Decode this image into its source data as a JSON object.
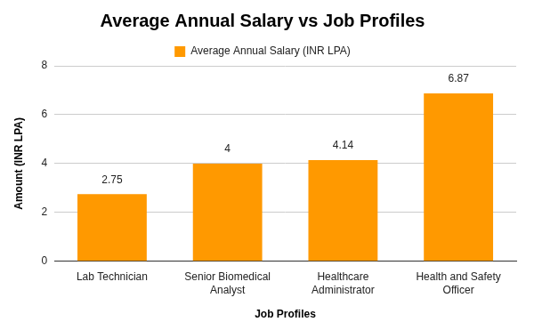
{
  "chart_data": {
    "type": "bar",
    "title": "Average Annual Salary vs Job Profiles",
    "x_label": "Job Profiles",
    "y_label": "Amount (INR LPA)",
    "categories": [
      "Lab Technician",
      "Senior Biomedical Analyst",
      "Healthcare Administrator",
      "Health and Safety Officer"
    ],
    "series": [
      {
        "name": "Average Annual Salary (INR LPA)",
        "color": "#ff9900",
        "values": [
          2.75,
          4,
          4.14,
          6.87
        ]
      }
    ],
    "ylim": [
      0,
      8
    ],
    "yticks": [
      0,
      2,
      4,
      6,
      8
    ],
    "grid": true,
    "legend": "top",
    "data_labels": true
  }
}
